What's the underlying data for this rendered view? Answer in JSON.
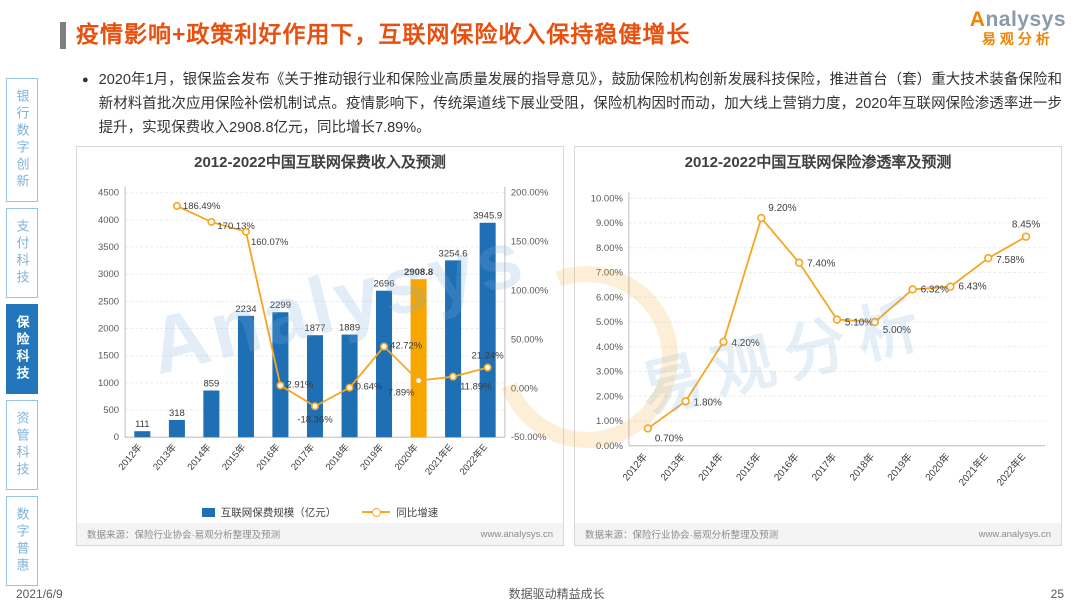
{
  "header": {
    "title": "疫情影响+政策利好作用下，互联网保险收入保持稳健增长",
    "logo": {
      "brand": "Analysys",
      "sub": "易观分析"
    }
  },
  "sidebar": {
    "items": [
      {
        "label": "银行数字创新",
        "active": false
      },
      {
        "label": "支付科技",
        "active": false
      },
      {
        "label": "保险科技",
        "active": true
      },
      {
        "label": "资管科技",
        "active": false
      },
      {
        "label": "数字普惠",
        "active": false
      }
    ]
  },
  "bullet": {
    "marker": "●",
    "text": "2020年1月，银保监会发布《关于推动银行业和保险业高质量发展的指导意见》，鼓励保险机构创新发展科技保险，推进首台（套）重大技术装备保险和新材料首批次应用保险补偿机制试点。疫情影响下，传统渠道线下展业受阻，保险机构因时而动，加大线上营销力度，2020年互联网保险渗透率进一步提升，实现保费收入2908.8亿元，同比增长7.89%。"
  },
  "watermark": {
    "latin": "Analysys",
    "cjk": "易观分析"
  },
  "footer": {
    "date": "2021/6/9",
    "slogan": "数据驱动精益成长",
    "page": "25"
  },
  "chart_data": [
    {
      "type": "bar",
      "title": "2012-2022中国互联网保费收入及预测",
      "categories": [
        "2012年",
        "2013年",
        "2014年",
        "2015年",
        "2016年",
        "2017年",
        "2018年",
        "2019年",
        "2020年",
        "2021年E",
        "2022年E"
      ],
      "series": [
        {
          "name": "互联网保费规模（亿元）",
          "type": "bar",
          "values": [
            111,
            318,
            859,
            2234,
            2299,
            1877,
            1889,
            2696,
            2908.8,
            3254.6,
            3945.9
          ],
          "color": "#1F6FB5",
          "highlight_index": 8,
          "highlight_color": "#F7A600"
        },
        {
          "name": "同比增速",
          "type": "line",
          "axis": "right",
          "values": [
            null,
            186.49,
            170.13,
            160.07,
            2.91,
            -18.36,
            0.64,
            42.72,
            7.89,
            11.89,
            21.24
          ],
          "labels": [
            null,
            "186.49%",
            "170.13%",
            "160.07%",
            "2.91%",
            "-18.36%",
            "0.64%",
            "42.72%",
            "7.89%",
            "11.89%",
            "21.24%"
          ],
          "color": "#F5A623"
        }
      ],
      "left_axis": {
        "min": 0,
        "max": 4500,
        "step": 500
      },
      "right_axis": {
        "min": -50,
        "max": 200,
        "step": 50,
        "format": "percent2"
      },
      "grid": true,
      "legend_position": "bottom",
      "source": "数据来源：保险行业协会·易观分析整理及预测",
      "site": "www.analysys.cn"
    },
    {
      "type": "line",
      "title": "2012-2022中国互联网保险渗透率及预测",
      "categories": [
        "2012年",
        "2013年",
        "2014年",
        "2015年",
        "2016年",
        "2017年",
        "2018年",
        "2019年",
        "2020年",
        "2021年E",
        "2022年E"
      ],
      "values": [
        0.7,
        1.8,
        4.2,
        9.2,
        7.4,
        5.1,
        5.0,
        6.32,
        6.43,
        7.58,
        8.45
      ],
      "labels": [
        "0.70%",
        "1.80%",
        "4.20%",
        "9.20%",
        "7.40%",
        "5.10%",
        "5.00%",
        "6.32%",
        "6.43%",
        "7.58%",
        "8.45%"
      ],
      "y_axis": {
        "min": 0,
        "max": 10,
        "step": 1,
        "format": "percent2"
      },
      "grid": true,
      "color": "#F5A623",
      "source": "数据来源：保险行业协会·易观分析整理及预测",
      "site": "www.analysys.cn"
    }
  ]
}
